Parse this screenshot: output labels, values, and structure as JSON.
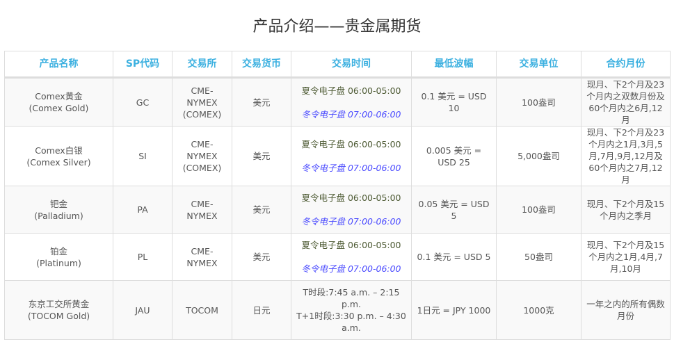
{
  "title": "产品介绍——贵金属期货",
  "headers": [
    "产品名称",
    "SP代码",
    "交易所",
    "交易货币",
    "交易时间",
    "最低波幅",
    "交易单位",
    "合约月份"
  ],
  "rows": [
    {
      "name": "Comex黄金",
      "name_en": "(Comex Gold)",
      "code": "GC",
      "exchange": "CME-NYMEX (COMEX)",
      "currency": "美元",
      "summer": "夏令电子盘 06:00-05:00",
      "winter": "冬令电子盘 07:00-06:00",
      "tick": "0.1 美元 = USD 10",
      "unit": "100盎司",
      "months": "现月、下2个月及23个月内之双数月份及60个月内之6月,12月"
    },
    {
      "name": "Comex白银",
      "name_en": "(Comex Silver)",
      "code": "SI",
      "exchange": "CME-NYMEX (COMEX)",
      "currency": "美元",
      "summer": "夏令电子盘 06:00-05:00",
      "winter": "冬令电子盘 07:00-06:00",
      "tick": "0.005 美元 = USD 25",
      "unit": "5,000盎司",
      "months": "现月、下2个月及23个月内之1月,3月,5月,7月,9月,12月及60个月内之7月,12月"
    },
    {
      "name": "钯金",
      "name_en": "(Palladium)",
      "code": "PA",
      "exchange": "CME-NYMEX",
      "currency": "美元",
      "summer": "夏令电子盘 06:00-05:00",
      "winter": "冬令电子盘 07:00-06:00",
      "tick": "0.05 美元 = USD 5",
      "unit": "100盎司",
      "months": "现月、下2个月及15个月内之季月"
    },
    {
      "name": "铂金",
      "name_en": "(Platinum)",
      "code": "PL",
      "exchange": "CME-NYMEX",
      "currency": "美元",
      "summer": "夏令电子盘 06:00-05:00",
      "winter": "冬令电子盘 07:00-06:00",
      "tick": "0.1 美元 = USD 5",
      "unit": "50盎司",
      "months": "现月、下2个月及15个月内之1月,4月,7月,10月"
    },
    {
      "name": "东京工交所黄金",
      "name_en": "(TOCOM Gold)",
      "code": "JAU",
      "exchange": "TOCOM",
      "currency": "日元",
      "time1": "T时段:7:45 a.m. – 2:15 p.m.",
      "time2": "T+1时段:3:30 p.m. – 4:30 a.m.",
      "tick": "1日元 = JPY 1000",
      "unit": "1000克",
      "months": "一年之内的所有偶数月份"
    }
  ]
}
